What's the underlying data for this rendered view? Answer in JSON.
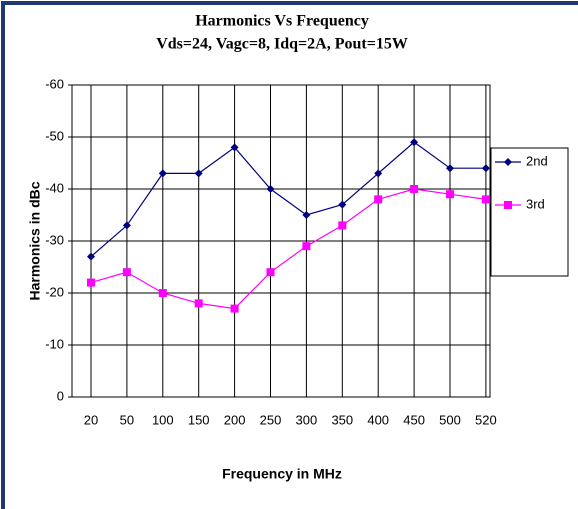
{
  "chart_data": {
    "type": "line",
    "title": "Harmonics Vs Frequency",
    "subtitle": "Vds=24, Vagc=8, Idq=2A, Pout=15W",
    "x_label": "Frequency in MHz",
    "y_label": "Harmonics in dBc",
    "categories": [
      "20",
      "50",
      "100",
      "150",
      "200",
      "250",
      "300",
      "350",
      "400",
      "450",
      "500",
      "520"
    ],
    "series": [
      {
        "name": "2nd",
        "color": "#000080",
        "marker": "diamond",
        "values": [
          -27,
          -33,
          -43,
          -43,
          -48,
          -40,
          -35,
          -37,
          -43,
          -49,
          -44,
          -44
        ]
      },
      {
        "name": "3rd",
        "color": "#ff00ff",
        "marker": "square",
        "values": [
          -22,
          -24,
          -20,
          -18,
          -17,
          -24,
          -29,
          -33,
          -38,
          -40,
          -39,
          -38
        ]
      }
    ],
    "ylim": [
      0,
      -60
    ],
    "yticks": [
      0,
      -10,
      -20,
      -30,
      -40,
      -50,
      -60
    ],
    "grid": true,
    "legend": "right"
  }
}
